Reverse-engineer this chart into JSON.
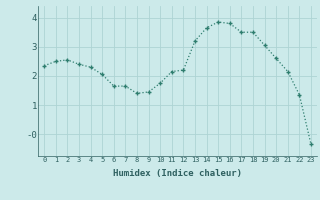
{
  "x": [
    0,
    1,
    2,
    3,
    4,
    5,
    6,
    7,
    8,
    9,
    10,
    11,
    12,
    13,
    14,
    15,
    16,
    17,
    18,
    19,
    20,
    21,
    22,
    23
  ],
  "y": [
    2.35,
    2.5,
    2.55,
    2.4,
    2.3,
    2.05,
    1.65,
    1.65,
    1.4,
    1.45,
    1.75,
    2.15,
    2.2,
    3.2,
    3.65,
    3.85,
    3.8,
    3.5,
    3.5,
    3.05,
    2.6,
    2.15,
    1.35,
    -0.35
  ],
  "line_color": "#2e7d6e",
  "marker": "+",
  "bg_color": "#cceaea",
  "grid_color": "#aed4d4",
  "xlabel": "Humidex (Indice chaleur)",
  "ytick_labels": [
    "-0",
    "1",
    "2",
    "3",
    "4"
  ],
  "ytick_vals": [
    0,
    1,
    2,
    3,
    4
  ],
  "ylim": [
    -0.75,
    4.4
  ],
  "xlim": [
    -0.5,
    23.5
  ],
  "font_color": "#2e6060"
}
